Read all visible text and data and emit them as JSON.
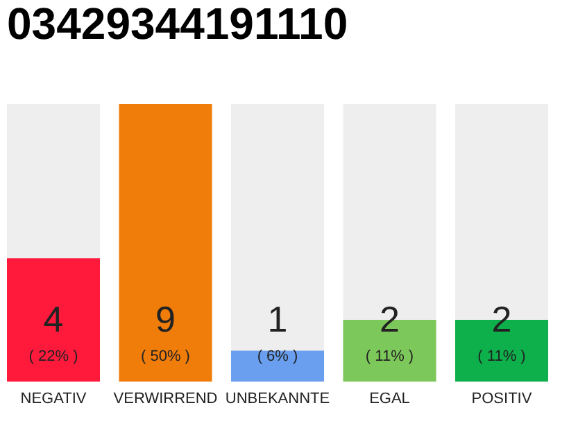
{
  "chart_data": {
    "type": "bar",
    "title": "03429344191110",
    "categories": [
      "NEGATIV",
      "VERWIRREND",
      "UNBEKANNTE",
      "EGAL",
      "POSITIV"
    ],
    "values": [
      4,
      9,
      1,
      2,
      2
    ],
    "colors": [
      "#ff1a3c",
      "#f07d0a",
      "#6a9ff0",
      "#7dc85a",
      "#0db04b"
    ],
    "data_labels": true,
    "grid": false,
    "annotations": [
      "( 22% )",
      "( 50% )",
      "( 6% )",
      "( 11% )",
      "( 11% )"
    ]
  }
}
